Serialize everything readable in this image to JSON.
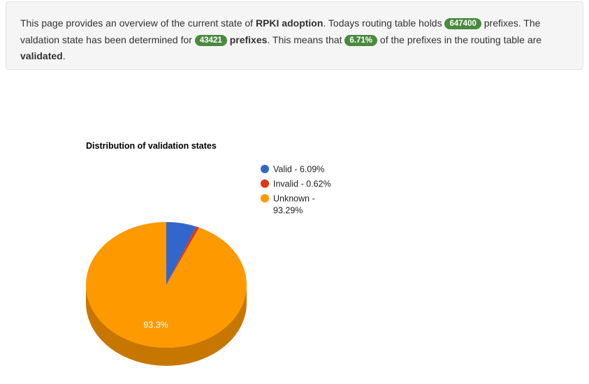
{
  "summary": {
    "intro": "This page provides an overview of the current state of ",
    "rpki_term": "RPKI adoption",
    "routing_text": ". Todays routing table holds ",
    "table_prefixes": "647400",
    "prefixes_word": " prefixes. The valdation state has been determined for ",
    "validated_count": "43421",
    "prefixes_bold": "prefixes",
    "means_text": ". This means that ",
    "validated_percent": "6.71%",
    "of_prefixes_text": " of the prefixes in the routing table are ",
    "validated_word": "validated",
    "end": ".",
    "badge_color": "#4a8a3f"
  },
  "chart_data": {
    "type": "pie",
    "title": "Distribution of validation states",
    "three_d": true,
    "legend_position": "right",
    "slices": [
      {
        "label": "Valid",
        "value": 6.09,
        "color": "#3366cc",
        "legend": "Valid - 6.09%",
        "data_label": ""
      },
      {
        "label": "Invalid",
        "value": 0.62,
        "color": "#dc3912",
        "legend": "Invalid - 0.62%",
        "data_label": ""
      },
      {
        "label": "Unknown",
        "value": 93.29,
        "color": "#ff9900",
        "legend_lines": [
          "Unknown -",
          "93.29%"
        ],
        "data_label": "93.3%"
      }
    ]
  }
}
